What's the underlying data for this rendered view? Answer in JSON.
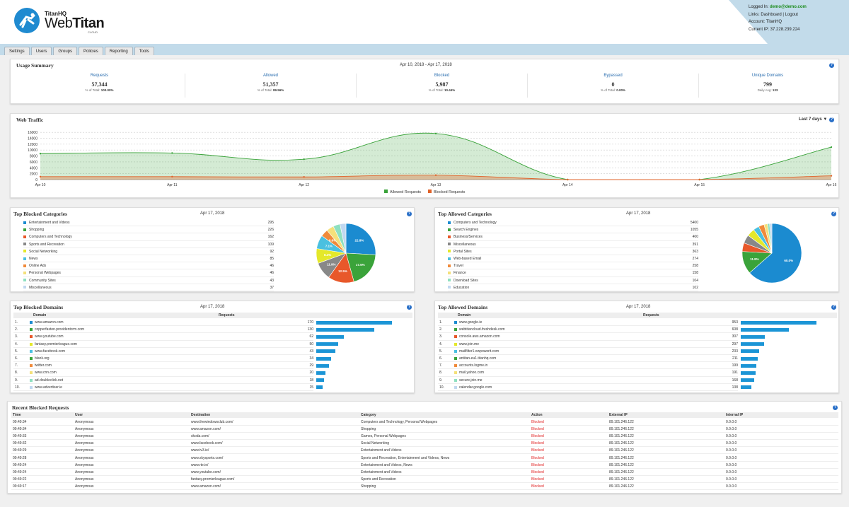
{
  "brand": {
    "company": "TitanHQ",
    "product_a": "Web",
    "product_b": "Titan",
    "edition": "CLOUD"
  },
  "login": {
    "logged_in_label": "Logged In:",
    "user": "demo@demo.com",
    "links_label": "Links:",
    "links": [
      "Dashboard",
      "Logout"
    ],
    "account": "Account: TitanHQ",
    "ip": "Current IP: 37.228.239.224"
  },
  "nav": [
    "Settings",
    "Users",
    "Groups",
    "Policies",
    "Reporting",
    "Tools"
  ],
  "usage": {
    "title": "Usage Summary",
    "date": "Apr 10, 2018 - Apr 17, 2018",
    "help": "?",
    "cols": [
      {
        "label": "Requests",
        "value": "57,344",
        "sub": "% of Total:",
        "subv": "100.00%"
      },
      {
        "label": "Allowed",
        "value": "51,357",
        "sub": "% of Total:",
        "subv": "89.56%"
      },
      {
        "label": "Blocked",
        "value": "5,987",
        "sub": "% of Total:",
        "subv": "10.44%"
      },
      {
        "label": "Bypassed",
        "value": "0",
        "sub": "% of Total:",
        "subv": "0.00%"
      },
      {
        "label": "Unique Domains",
        "value": "799",
        "sub": "Daily Avg:",
        "subv": "133"
      }
    ]
  },
  "traffic": {
    "title": "Web Traffic",
    "range": "Last 7 days ▼",
    "help": "?"
  },
  "chart_data": {
    "type": "area",
    "x": [
      "Apr 10",
      "Apr 11",
      "Apr 12",
      "Apr 13",
      "Apr 14",
      "Apr 15",
      "Apr 16"
    ],
    "yticks": [
      0,
      2000,
      4000,
      6000,
      8000,
      10000,
      12000,
      14000,
      16000
    ],
    "ylim": [
      0,
      17000
    ],
    "grid": true,
    "legend": "bottom",
    "series": [
      {
        "name": "Allowed Requests",
        "color": "#3aa33a",
        "values": [
          8800,
          9000,
          6900,
          15600,
          0,
          0,
          11000
        ]
      },
      {
        "name": "Blocked Requests",
        "color": "#e0632a",
        "values": [
          1000,
          1000,
          900,
          1500,
          0,
          0,
          1300
        ]
      }
    ]
  },
  "blocked_cats": {
    "title": "Top Blocked Categories",
    "date": "Apr 17, 2018",
    "help": "?",
    "items": [
      {
        "name": "Entertainment and Videos",
        "value": 295,
        "color": "#1b8bd0"
      },
      {
        "name": "Shopping",
        "value": 226,
        "color": "#3aa33a"
      },
      {
        "name": "Computers and Technology",
        "value": 162,
        "color": "#e8582a"
      },
      {
        "name": "Sports and Recreation",
        "value": 109,
        "color": "#888888"
      },
      {
        "name": "Social Networking",
        "value": 92,
        "color": "#e4e82a"
      },
      {
        "name": "News",
        "value": 85,
        "color": "#4ac0e0"
      },
      {
        "name": "Online Ads",
        "value": 46,
        "color": "#f08a3a"
      },
      {
        "name": "Personal Webpages",
        "value": 46,
        "color": "#f4e07a"
      },
      {
        "name": "Community Sites",
        "value": 43,
        "color": "#8ee0c0"
      },
      {
        "name": "Miscellaneous",
        "value": 37,
        "color": "#c0d8f0"
      }
    ],
    "labels": [
      "22.8%",
      "17.5%",
      "12.5%",
      "11.9%",
      "8.4%",
      "7.1%",
      "6.6%"
    ]
  },
  "allowed_cats": {
    "title": "Top Allowed Categories",
    "date": "Apr 17, 2018",
    "help": "?",
    "items": [
      {
        "name": "Computers and Technology",
        "value": 5400,
        "color": "#1b8bd0"
      },
      {
        "name": "Search Engines",
        "value": 1055,
        "color": "#3aa33a"
      },
      {
        "name": "Business/Services",
        "value": 400,
        "color": "#e8582a"
      },
      {
        "name": "Miscellaneous",
        "value": 391,
        "color": "#888888"
      },
      {
        "name": "Portal Sites",
        "value": 363,
        "color": "#e4e82a"
      },
      {
        "name": "Web-based Email",
        "value": 274,
        "color": "#4ac0e0"
      },
      {
        "name": "Travel",
        "value": 258,
        "color": "#f08a3a"
      },
      {
        "name": "Finance",
        "value": 158,
        "color": "#f4e07a"
      },
      {
        "name": "Download Sites",
        "value": 104,
        "color": "#8ee0c0"
      },
      {
        "name": "Education",
        "value": 102,
        "color": "#c0d8f0"
      }
    ],
    "labels": [
      "60.0%",
      "11.8%"
    ]
  },
  "blocked_domains": {
    "title": "Top Blocked Domains",
    "date": "Apr 17, 2018",
    "help": "?",
    "col_domain": "Domain",
    "col_requests": "Requests",
    "items": [
      {
        "n": "1.",
        "name": "www.amazon.com",
        "value": 170,
        "color": "#1b8bd0"
      },
      {
        "n": "2.",
        "name": "copperfasten.providentcrm.com",
        "value": 130,
        "color": "#3aa33a"
      },
      {
        "n": "3.",
        "name": "www.youtube.com",
        "value": 62,
        "color": "#e8582a"
      },
      {
        "n": "4.",
        "name": "fantasy.premierleague.com",
        "value": 50,
        "color": "#e4e82a"
      },
      {
        "n": "5.",
        "name": "www.facebook.com",
        "value": 43,
        "color": "#4ac0e0"
      },
      {
        "n": "6.",
        "name": "blank.org",
        "value": 34,
        "color": "#3aa33a"
      },
      {
        "n": "7.",
        "name": "twitter.com",
        "value": 29,
        "color": "#f08a3a"
      },
      {
        "n": "8.",
        "name": "www.cnn.com",
        "value": 20,
        "color": "#f4e07a"
      },
      {
        "n": "9.",
        "name": "ad.doubleclick.net",
        "value": 18,
        "color": "#8ee0c0"
      },
      {
        "n": "10.",
        "name": "www.advertiser.ie",
        "value": 15,
        "color": "#c0d8f0"
      }
    ]
  },
  "allowed_domains": {
    "title": "Top Allowed Domains",
    "date": "Apr 17, 2018",
    "help": "?",
    "col_domain": "Domain",
    "col_requests": "Requests",
    "items": [
      {
        "n": "1.",
        "name": "www.google.ie",
        "value": 953,
        "color": "#1b8bd0"
      },
      {
        "n": "2.",
        "name": "webtitancloud.freshdesk.com",
        "value": 608,
        "color": "#3aa33a"
      },
      {
        "n": "3.",
        "name": "console.aws.amazon.com",
        "value": 307,
        "color": "#e8582a"
      },
      {
        "n": "4.",
        "name": "www.join.me",
        "value": 297,
        "color": "#e4e82a"
      },
      {
        "n": "5.",
        "name": "mailfilter1.owpowerit.com",
        "value": 233,
        "color": "#4ac0e0"
      },
      {
        "n": "6.",
        "name": "antitan-eu1.titanhq.com",
        "value": 211,
        "color": "#3aa33a"
      },
      {
        "n": "7.",
        "name": "accounts.logme.in",
        "value": 199,
        "color": "#f08a3a"
      },
      {
        "n": "8.",
        "name": "mail.yahoo.com",
        "value": 191,
        "color": "#f4e07a"
      },
      {
        "n": "9.",
        "name": "secure.join.me",
        "value": 168,
        "color": "#8ee0c0"
      },
      {
        "n": "10.",
        "name": "calendar.google.com",
        "value": 138,
        "color": "#c0d8f0"
      }
    ]
  },
  "recent": {
    "title": "Recent Blocked Requests",
    "help": "?",
    "cols": [
      "Time",
      "User",
      "Destination",
      "Category",
      "Action",
      "External IP",
      "Internal IP"
    ],
    "rows": [
      [
        "09:49:34",
        "Anonymous",
        "www.thewindowsclub.com/",
        "Computers and Technology, Personal Webpages",
        "Blocked",
        "89.101.246.122",
        "0.0.0.0"
      ],
      [
        "09:49:34",
        "Anonymous",
        "www.amazon.com/",
        "Shopping",
        "Blocked",
        "89.101.246.122",
        "0.0.0.0"
      ],
      [
        "09:49:33",
        "Anonymous",
        "skoda.com/",
        "Games, Personal Webpages",
        "Blocked",
        "89.101.246.122",
        "0.0.0.0"
      ],
      [
        "09:49:32",
        "Anonymous",
        "www.facebook.com/",
        "Social Networking",
        "Blocked",
        "89.101.246.122",
        "0.0.0.0"
      ],
      [
        "09:49:29",
        "Anonymous",
        "www.tv3.ie/",
        "Entertainment and Videos",
        "Blocked",
        "89.101.246.122",
        "0.0.0.0"
      ],
      [
        "09:49:28",
        "Anonymous",
        "www.skysports.com/",
        "Sports and Recreation, Entertainment and Videos, News",
        "Blocked",
        "89.101.246.122",
        "0.0.0.0"
      ],
      [
        "09:49:24",
        "Anonymous",
        "www.rte.ie/",
        "Entertainment and Videos, News",
        "Blocked",
        "89.101.246.122",
        "0.0.0.0"
      ],
      [
        "09:49:24",
        "Anonymous",
        "www.youtube.com/",
        "Entertainment and Videos",
        "Blocked",
        "89.101.246.122",
        "0.0.0.0"
      ],
      [
        "09:49:22",
        "Anonymous",
        "fantasy.premierleague.com/",
        "Sports and Recreation",
        "Blocked",
        "89.101.246.122",
        "0.0.0.0"
      ],
      [
        "09:49:17",
        "Anonymous",
        "www.amazon.com/",
        "Shopping",
        "Blocked",
        "89.101.246.122",
        "0.0.0.0"
      ]
    ]
  }
}
